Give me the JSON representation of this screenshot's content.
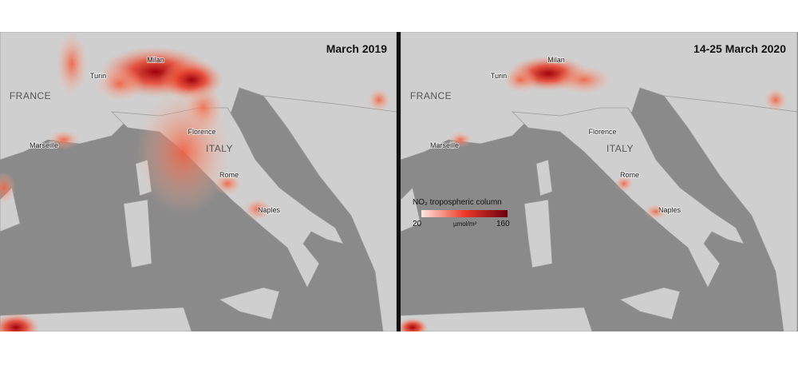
{
  "panels": [
    {
      "title": "March 2019",
      "labels": [
        "Milan",
        "Turin",
        "FRANCE",
        "Marseille",
        "Florence",
        "ITALY",
        "Rome",
        "Naples"
      ]
    },
    {
      "title": "14-25 March 2020",
      "labels": [
        "Milan",
        "Turin",
        "FRANCE",
        "Marseille",
        "Florence",
        "ITALY",
        "Rome",
        "Naples"
      ]
    }
  ],
  "legend": {
    "title": "NO₂ tropospheric column",
    "min": 20,
    "max": 160,
    "unit": "µmol/m²"
  }
}
